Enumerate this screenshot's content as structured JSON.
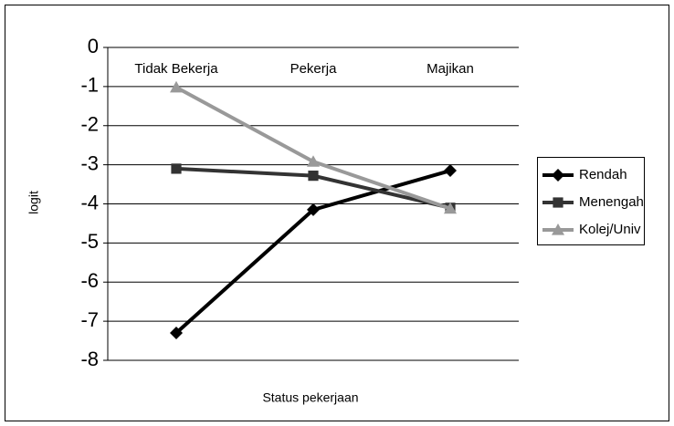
{
  "chart_data": {
    "type": "line",
    "categories": [
      "Tidak Bekerja",
      "Pekerja",
      "Majikan"
    ],
    "xlabel": "Status pekerjaan",
    "ylabel": "logit",
    "ylim": [
      -8,
      0
    ],
    "yticks": [
      0,
      -1,
      -2,
      -3,
      -4,
      -5,
      -6,
      -7,
      -8
    ],
    "grid": true,
    "legend": "right",
    "series": [
      {
        "name": "Rendah",
        "color": "#000000",
        "marker": "diamond",
        "values": [
          -7.3,
          -4.15,
          -3.15
        ]
      },
      {
        "name": "Menengah",
        "color": "#333333",
        "marker": "square",
        "values": [
          -3.1,
          -3.28,
          -4.1
        ]
      },
      {
        "name": "Kolej/Univ",
        "color": "#999999",
        "marker": "triangle",
        "values": [
          -1.02,
          -2.92,
          -4.12
        ]
      }
    ]
  }
}
